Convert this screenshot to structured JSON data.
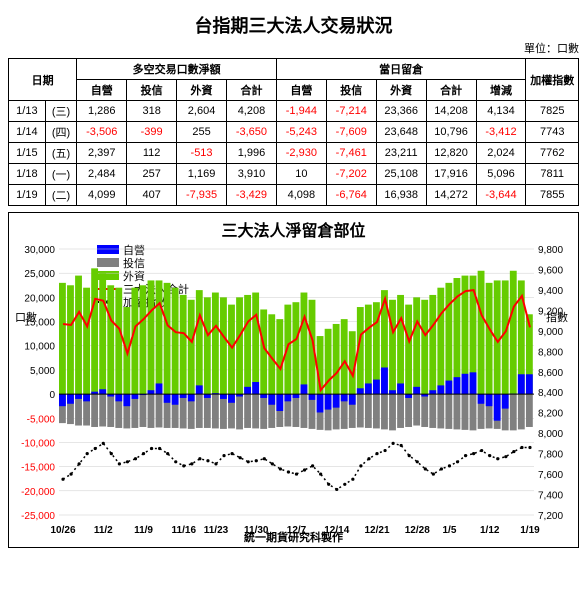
{
  "title": "台指期三大法人交易狀況",
  "unit_label": "單位：口數",
  "columns": {
    "date": "日期",
    "net_group": "多空交易口數淨額",
    "pos_group": "當日留倉",
    "self": "自營",
    "invest": "投信",
    "foreign": "外資",
    "total": "合計",
    "delta": "增減",
    "index": "加權指數"
  },
  "rows": [
    {
      "date": "1/13",
      "wd": "(三)",
      "n_self": 1286,
      "n_inv": 318,
      "n_for": 2604,
      "n_tot": 4208,
      "p_self": -1944,
      "p_inv": -7214,
      "p_for": 23366,
      "p_tot": 14208,
      "p_diff": 4134,
      "idx": 7825
    },
    {
      "date": "1/14",
      "wd": "(四)",
      "n_self": -3506,
      "n_inv": -399,
      "n_for": 255,
      "n_tot": -3650,
      "p_self": -5243,
      "p_inv": -7609,
      "p_for": 23648,
      "p_tot": 10796,
      "p_diff": -3412,
      "idx": 7743
    },
    {
      "date": "1/15",
      "wd": "(五)",
      "n_self": 2397,
      "n_inv": 112,
      "n_for": -513,
      "n_tot": 1996,
      "p_self": -2930,
      "p_inv": -7461,
      "p_for": 23211,
      "p_tot": 12820,
      "p_diff": 2024,
      "idx": 7762
    },
    {
      "date": "1/18",
      "wd": "(一)",
      "n_self": 2484,
      "n_inv": 257,
      "n_for": 1169,
      "n_tot": 3910,
      "p_self": 10,
      "p_inv": -7202,
      "p_for": 25108,
      "p_tot": 17916,
      "p_diff": 5096,
      "idx": 7811
    },
    {
      "date": "1/19",
      "wd": "(二)",
      "n_self": 4099,
      "n_inv": 407,
      "n_for": -7935,
      "n_tot": -3429,
      "p_self": 4098,
      "p_inv": -6764,
      "p_for": 16938,
      "p_tot": 14272,
      "p_diff": -3644,
      "idx": 7855
    }
  ],
  "chart": {
    "title": "三大法人淨留倉部位",
    "footer": "統一期貨研究科製作",
    "left_axis_label": "口數",
    "right_axis_label": "指數",
    "legend": {
      "self": "自營",
      "invest": "投信",
      "foreign": "外資",
      "total": "三大法人合計",
      "index": "加權指數"
    },
    "colors": {
      "self": "#0000ff",
      "invest": "#808080",
      "foreign": "#66cc00",
      "total_line": "#ff0000",
      "index_line": "#000000",
      "grid": "#cccccc",
      "zero": "#000000",
      "neg_label": "#ff0000"
    },
    "y_left": {
      "min": -25000,
      "max": 30000,
      "step": 5000
    },
    "y_right": {
      "min": 7200,
      "max": 9800,
      "step": 200
    },
    "x_labels": [
      "10/26",
      "11/2",
      "11/9",
      "11/16",
      "11/23",
      "11/30",
      "12/7",
      "12/14",
      "12/21",
      "12/28",
      "1/5",
      "1/12",
      "1/19"
    ],
    "series": {
      "foreign": [
        23000,
        22500,
        24500,
        22000,
        26000,
        25000,
        22500,
        22000,
        18000,
        22000,
        22500,
        23500,
        23500,
        23000,
        22000,
        20500,
        19500,
        21500,
        20000,
        21000,
        20000,
        18500,
        20000,
        20500,
        21000,
        17500,
        16500,
        15500,
        18500,
        19000,
        21000,
        19500,
        12000,
        13500,
        14500,
        15500,
        13000,
        18000,
        18500,
        19000,
        21500,
        19500,
        20500,
        18500,
        20000,
        19500,
        20500,
        22000,
        23000,
        24000,
        24500,
        24500,
        25500,
        23000,
        23500,
        23500,
        25500,
        23500,
        16500
      ],
      "invest": [
        -6000,
        -6200,
        -6500,
        -6500,
        -6800,
        -6700,
        -6800,
        -7000,
        -7100,
        -7000,
        -6800,
        -7000,
        -6900,
        -7000,
        -7000,
        -7100,
        -7200,
        -7000,
        -7000,
        -7100,
        -7200,
        -7100,
        -7300,
        -7000,
        -7100,
        -7200,
        -7000,
        -6800,
        -6700,
        -6800,
        -7000,
        -7200,
        -7400,
        -7500,
        -7300,
        -7200,
        -7000,
        -6900,
        -7000,
        -7100,
        -7300,
        -7500,
        -7000,
        -6800,
        -6500,
        -6800,
        -7000,
        -7100,
        -7200,
        -7300,
        -7400,
        -7500,
        -7200,
        -7100,
        -7200,
        -7500,
        -7500,
        -7300,
        -6800
      ],
      "self": [
        -2500,
        -2000,
        -1000,
        -1500,
        500,
        1000,
        -500,
        -1500,
        -2500,
        -1000,
        -200,
        800,
        2200,
        -1800,
        -2200,
        -800,
        -1500,
        1800,
        -800,
        200,
        -1000,
        -1800,
        -500,
        1500,
        2500,
        -800,
        -2200,
        -3500,
        -1500,
        -800,
        2000,
        -1200,
        -3800,
        -3200,
        -2800,
        -1500,
        -2200,
        1200,
        2200,
        3000,
        5500,
        800,
        2200,
        -800,
        1500,
        -500,
        800,
        1800,
        2800,
        3500,
        4200,
        4500,
        -2000,
        -2500,
        -5500,
        -3000,
        100,
        4100,
        4100
      ],
      "total": [
        14500,
        14300,
        17000,
        14000,
        19700,
        19300,
        15200,
        13500,
        8400,
        14000,
        15500,
        17300,
        18800,
        14200,
        12800,
        12600,
        10800,
        16300,
        12200,
        14100,
        11800,
        9600,
        12200,
        15000,
        16400,
        9500,
        7300,
        5200,
        10300,
        11400,
        16000,
        11100,
        800,
        2800,
        4400,
        6800,
        3800,
        12300,
        13700,
        14900,
        19700,
        12800,
        15700,
        10900,
        15000,
        12200,
        14300,
        16700,
        18600,
        20200,
        21300,
        21500,
        16300,
        13400,
        10800,
        13000,
        18100,
        20300,
        13800
      ],
      "index": [
        7550,
        7600,
        7700,
        7800,
        7850,
        7900,
        7800,
        7700,
        7720,
        7750,
        7800,
        7850,
        7850,
        7800,
        7720,
        7680,
        7700,
        7750,
        7730,
        7700,
        7780,
        7800,
        7760,
        7720,
        7730,
        7750,
        7700,
        7650,
        7620,
        7600,
        7640,
        7680,
        7600,
        7500,
        7450,
        7500,
        7550,
        7680,
        7750,
        7800,
        7830,
        7900,
        7880,
        7780,
        7720,
        7650,
        7600,
        7650,
        7680,
        7720,
        7780,
        7800,
        7830,
        7780,
        7750,
        7770,
        7820,
        7860,
        7860
      ]
    }
  }
}
